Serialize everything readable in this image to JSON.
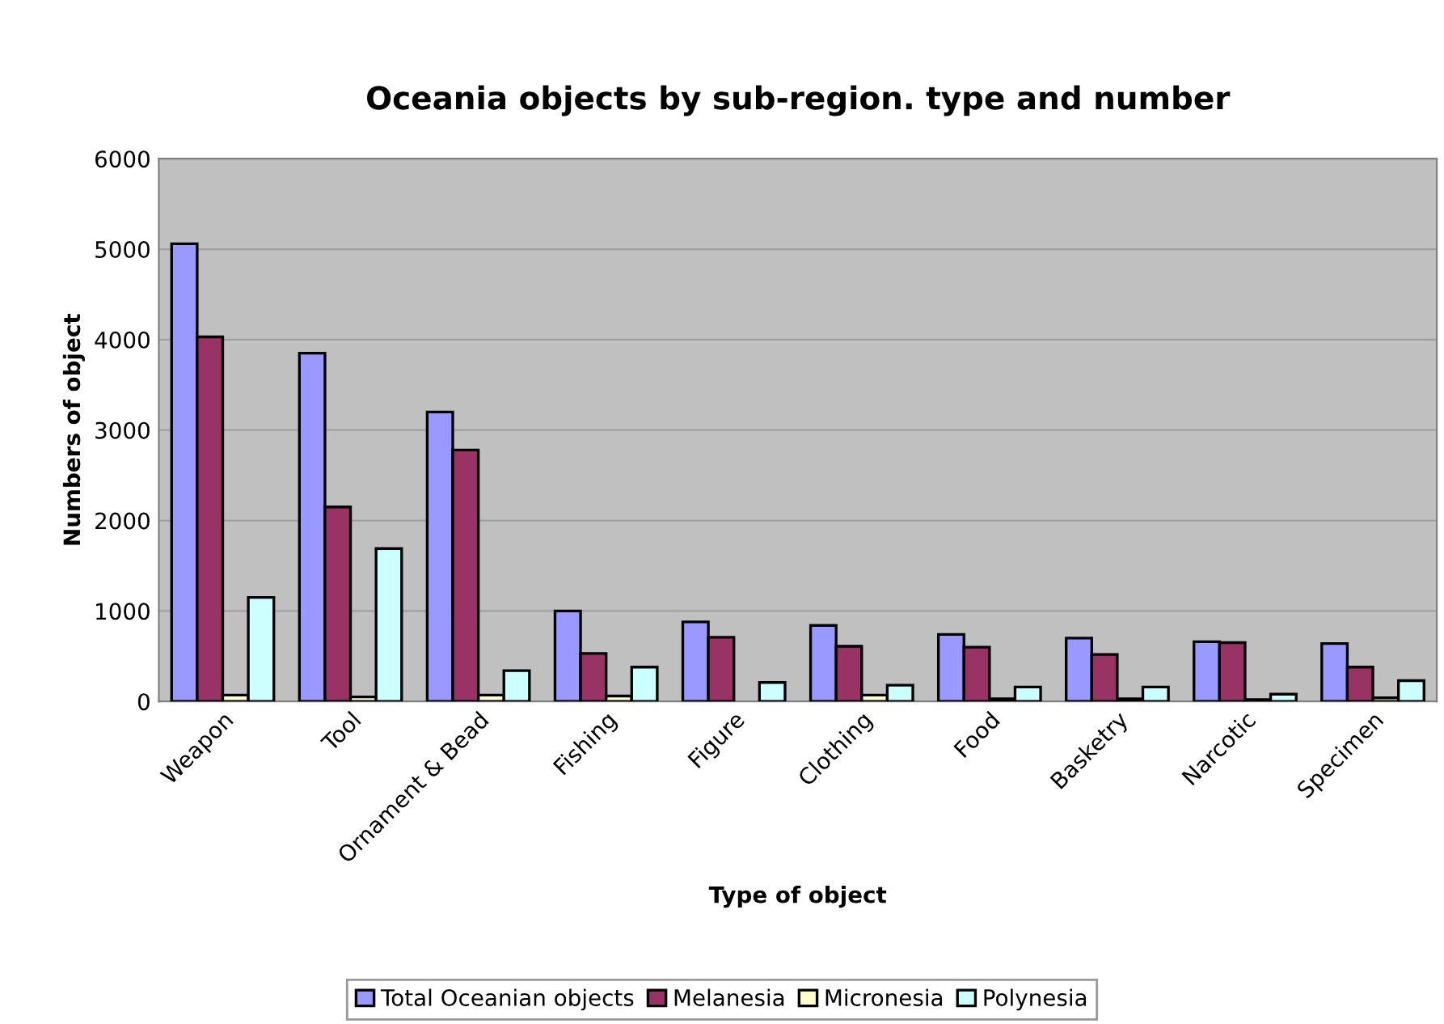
{
  "chart_data": {
    "type": "bar",
    "title": "Oceania objects by sub-region. type and number",
    "xlabel": "Type of object",
    "ylabel": "Numbers of object",
    "categories": [
      "Weapon",
      "Tool",
      "Ornament & Bead",
      "Fishing",
      "Figure",
      "Clothing",
      "Food",
      "Basketry",
      "Narcotic",
      "Specimen"
    ],
    "series": [
      {
        "name": "Total Oceanian objects",
        "color": "#9999ff",
        "values": [
          5060,
          3850,
          3200,
          1000,
          880,
          840,
          740,
          700,
          660,
          640
        ]
      },
      {
        "name": "Melanesia",
        "color": "#993366",
        "values": [
          4030,
          2150,
          2780,
          530,
          710,
          610,
          600,
          520,
          650,
          380
        ]
      },
      {
        "name": "Micronesia",
        "color": "#ffffcc",
        "values": [
          70,
          50,
          70,
          60,
          null,
          70,
          30,
          30,
          20,
          40
        ]
      },
      {
        "name": "Polynesia",
        "color": "#ccffff",
        "values": [
          1150,
          1690,
          340,
          380,
          210,
          180,
          160,
          160,
          80,
          230
        ]
      }
    ],
    "ylim": [
      0,
      6000
    ],
    "yticks": [
      0,
      1000,
      2000,
      3000,
      4000,
      5000,
      6000
    ],
    "grid": "y",
    "legend": "bottom"
  }
}
